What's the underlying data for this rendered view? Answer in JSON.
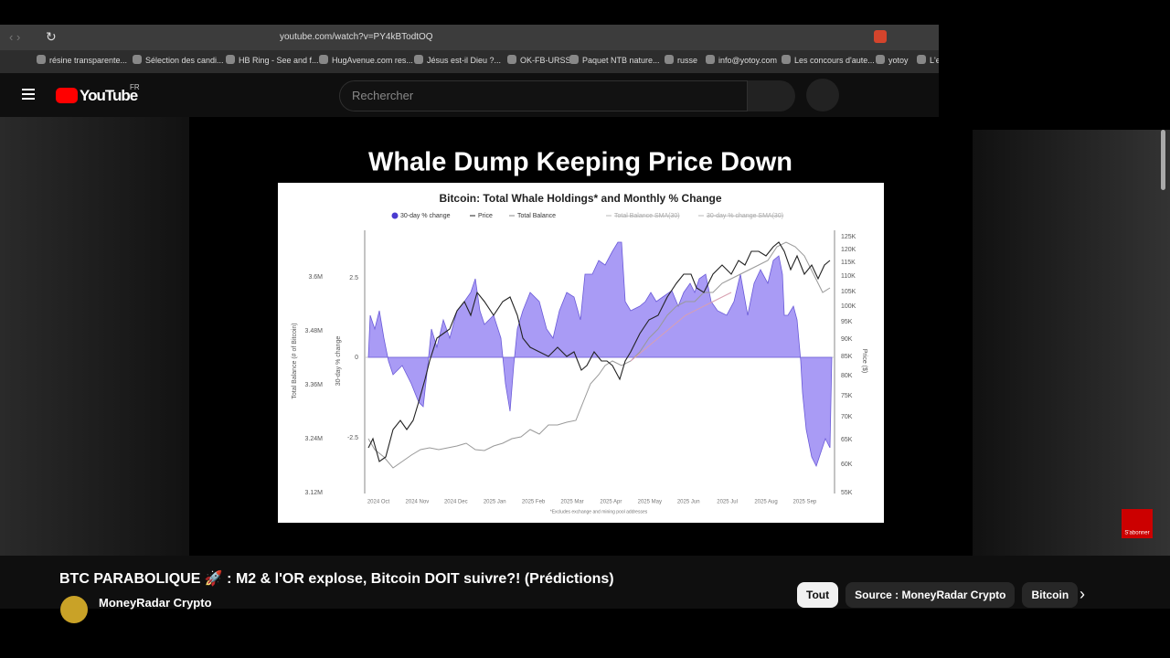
{
  "browser": {
    "url": "youtube.com/watch?v=PY4kBTodtOQ",
    "bookmarks": [
      "résine transparente...",
      "Sélection des candi...",
      "HB Ring - See and f...",
      "HugAvenue.com res...",
      "Jésus est-il Dieu ?...",
      "OK-FB-URSS",
      "Paquet NTB nature...",
      "russe",
      "info@yotoy.com",
      "Les concours d'aute...",
      "yotoy",
      "L'e"
    ]
  },
  "header": {
    "logo": "YouTube",
    "region": "FR",
    "search_placeholder": "Rechercher"
  },
  "video": {
    "slide_title": "Whale Dump Keeping Price Down",
    "chart_title": "Bitcoin: Total Whale Holdings* and Monthly % Change",
    "legend": [
      "30-day % change",
      "Price",
      "Total Balance",
      "Total Balance SMA(30)",
      "30-day % change SMA(30)"
    ],
    "balance_axis_title": "Total Balance (# of Bitcoin)",
    "balance_ticks": [
      "3.6M",
      "3.48M",
      "3.36M",
      "3.24M",
      "3.12M"
    ],
    "change_axis_title": "30-day % change",
    "change_ticks": [
      "2.5",
      "0",
      "-2.5"
    ],
    "price_axis_title": "Price ($)",
    "price_ticks": [
      "125K",
      "120K",
      "115K",
      "110K",
      "105K",
      "100K",
      "95K",
      "90K",
      "85K",
      "80K",
      "75K",
      "70K",
      "65K",
      "60K",
      "55K"
    ],
    "x_labels": [
      "2024 Oct",
      "2024 Nov",
      "2024 Dec",
      "2025 Jan",
      "2025 Feb",
      "2025 Mar",
      "2025 Apr",
      "2025 May",
      "2025 Jun",
      "2025 Jul",
      "2025 Aug",
      "2025 Sep"
    ],
    "footnote": "*Excludes exchange and mining pool addresses",
    "subscribe": "S'abonner"
  },
  "video_title": "BTC PARABOLIQUE 🚀 : M2 & l'OR explose, Bitcoin DOIT suivre?! (Prédictions)",
  "channel": "MoneyRadar Crypto",
  "chips": [
    "Tout",
    "Source : MoneyRadar Crypto",
    "Bitcoin"
  ]
}
